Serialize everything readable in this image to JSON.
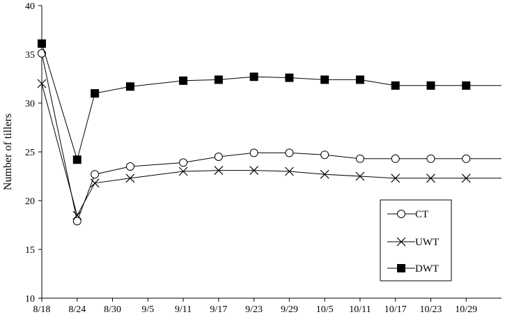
{
  "chart_data": {
    "type": "line",
    "title": "",
    "xlabel": "",
    "ylabel": "Number of tillers",
    "x_tick_labels": [
      "8/18",
      "8/24",
      "8/30",
      "9/5",
      "9/11",
      "9/17",
      "9/23",
      "9/29",
      "10/5",
      "10/11",
      "10/17",
      "10/23",
      "10/29"
    ],
    "x_tick_days": [
      0,
      6,
      12,
      18,
      24,
      30,
      36,
      42,
      48,
      54,
      60,
      66,
      72
    ],
    "xlim": [
      0,
      78
    ],
    "ylim": [
      10,
      40
    ],
    "y_ticks": [
      10,
      15,
      20,
      25,
      30,
      35,
      40
    ],
    "grid": false,
    "legend": "bottom-right",
    "series": [
      {
        "name": "CT",
        "marker": "circle-open",
        "x": [
          0,
          6,
          9,
          15,
          24,
          30,
          36,
          42,
          48,
          54,
          60,
          66,
          72,
          78
        ],
        "values": [
          35.1,
          17.9,
          22.7,
          23.5,
          23.9,
          24.5,
          24.9,
          24.9,
          24.7,
          24.3,
          24.3,
          24.3,
          24.3,
          24.3
        ]
      },
      {
        "name": "UWT",
        "marker": "x",
        "x": [
          0,
          6,
          9,
          15,
          24,
          30,
          36,
          42,
          48,
          54,
          60,
          66,
          72,
          78
        ],
        "values": [
          32.0,
          18.5,
          21.8,
          22.3,
          23.0,
          23.1,
          23.1,
          23.0,
          22.7,
          22.5,
          22.3,
          22.3,
          22.3,
          22.3
        ]
      },
      {
        "name": "DWT",
        "marker": "square-filled",
        "x": [
          0,
          6,
          9,
          15,
          24,
          30,
          36,
          42,
          48,
          54,
          60,
          66,
          72,
          78
        ],
        "values": [
          36.1,
          24.2,
          31.0,
          31.7,
          32.3,
          32.4,
          32.7,
          32.6,
          32.4,
          32.4,
          31.8,
          31.8,
          31.8,
          31.8
        ]
      }
    ]
  }
}
